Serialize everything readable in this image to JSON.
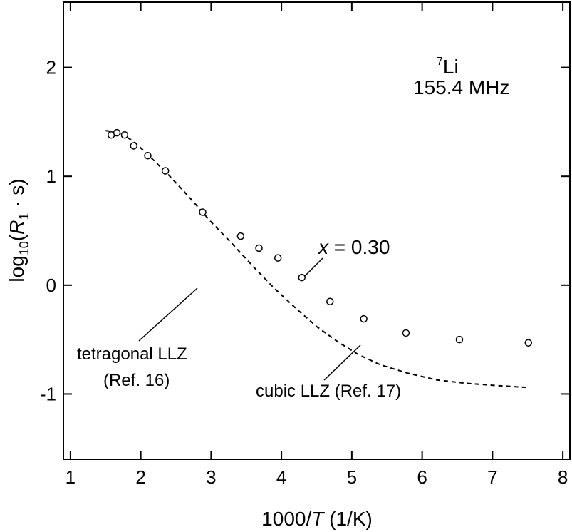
{
  "chart_data": {
    "type": "scatter",
    "xlabel": {
      "pre": "1000/",
      "var": "T",
      "post": " (1/K)"
    },
    "ylabel": {
      "pre": "log",
      "sub": "10",
      "mid": "(",
      "var": "R",
      "sub2": "1",
      "post": " · s)"
    },
    "xlim": [
      0.9,
      8.1
    ],
    "ylim": [
      -1.6,
      2.6
    ],
    "xticks": [
      1,
      2,
      3,
      4,
      5,
      6,
      7,
      8
    ],
    "yticks": [
      -1,
      0,
      1,
      2
    ],
    "series": [
      {
        "name": "x = 0.30",
        "style": "open-circle",
        "points": [
          [
            1.58,
            1.38
          ],
          [
            1.66,
            1.4
          ],
          [
            1.77,
            1.38
          ],
          [
            1.9,
            1.28
          ],
          [
            2.1,
            1.19
          ],
          [
            2.35,
            1.05
          ],
          [
            2.88,
            0.67
          ],
          [
            3.42,
            0.45
          ],
          [
            3.68,
            0.34
          ],
          [
            3.95,
            0.25
          ],
          [
            4.29,
            0.07
          ],
          [
            4.69,
            -0.15
          ],
          [
            5.17,
            -0.31
          ],
          [
            5.77,
            -0.44
          ],
          [
            6.53,
            -0.5
          ],
          [
            7.51,
            -0.53
          ]
        ]
      },
      {
        "name": "cubic LLZ (Ref. 17)",
        "style": "dashed-line",
        "points": [
          [
            1.5,
            1.42
          ],
          [
            1.7,
            1.4
          ],
          [
            1.9,
            1.32
          ],
          [
            2.1,
            1.2
          ],
          [
            2.4,
            1.01
          ],
          [
            2.7,
            0.8
          ],
          [
            3.0,
            0.58
          ],
          [
            3.3,
            0.38
          ],
          [
            3.6,
            0.17
          ],
          [
            3.9,
            -0.03
          ],
          [
            4.2,
            -0.21
          ],
          [
            4.5,
            -0.38
          ],
          [
            4.8,
            -0.52
          ],
          [
            5.1,
            -0.64
          ],
          [
            5.4,
            -0.73
          ],
          [
            5.8,
            -0.81
          ],
          [
            6.2,
            -0.87
          ],
          [
            6.6,
            -0.9
          ],
          [
            7.0,
            -0.92
          ],
          [
            7.5,
            -0.94
          ]
        ]
      }
    ],
    "annotations": {
      "nucleus_sup": "7",
      "nucleus": "Li",
      "frequency": "155.4 MHz",
      "series_label": {
        "var": "x",
        "rest": " = 0.30"
      },
      "tetragonal_line1": "tetragonal LLZ",
      "tetragonal_line2": "(Ref. 16)",
      "cubic": "cubic LLZ (Ref. 17)"
    },
    "grid": false,
    "colors": {
      "marks": "#000000",
      "background": "#ffffff"
    }
  }
}
